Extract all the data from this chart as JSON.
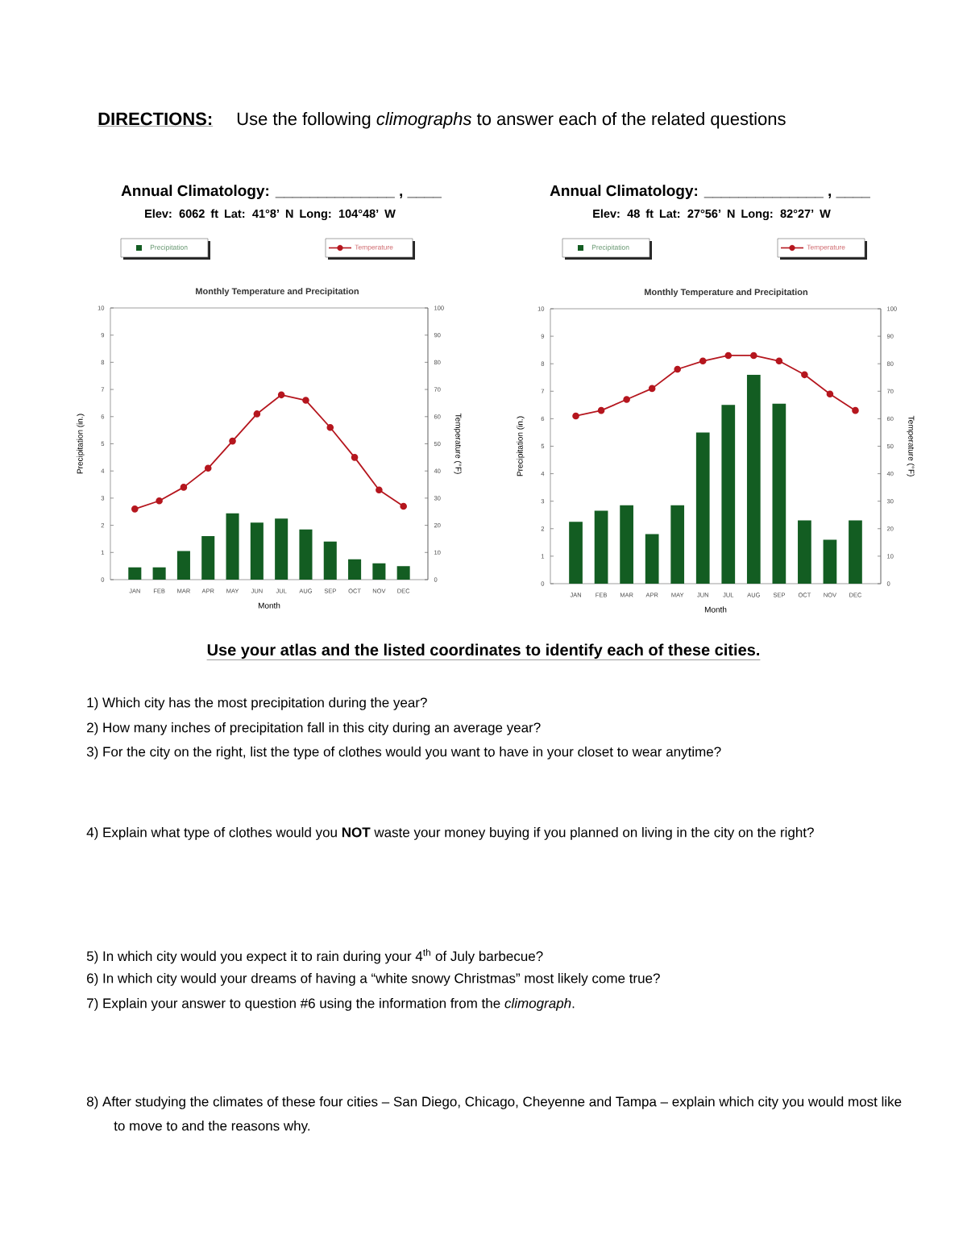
{
  "chart_data": [
    {
      "type": "other",
      "title": "DIRECTIONS:",
      "subtitle": "Use the following *climographs* to answer each of the related questions"
    },
    {
      "type": "bar",
      "title": "Annual Climatology: ______________ , ____",
      "subtitle": "Elev: 6062 ft Lat: 41°8’ N Long: 104°48’ W",
      "annotations": [
        "Monthly Temperature and Precipitation"
      ],
      "categories": [
        "JAN",
        "FEB",
        "MAR",
        "APR",
        "MAY",
        "JUN",
        "JUL",
        "AUG",
        "SEP",
        "OCT",
        "NOV",
        "DEC"
      ],
      "series": [
        {
          "name": "Precipitation",
          "color": "#135d22",
          "values": [
            0.45,
            0.45,
            1.05,
            1.6,
            2.45,
            2.1,
            2.25,
            1.85,
            1.4,
            0.75,
            0.6,
            0.5
          ]
        },
        {
          "name": "Temperature",
          "color": "#b5161e",
          "type": "line",
          "axis": "y2",
          "values": [
            26,
            29,
            34,
            41,
            51,
            61,
            68,
            66,
            56,
            45,
            33,
            27
          ]
        }
      ],
      "xlabel": "Month",
      "ylabel": "Precipitation (in.)",
      "y2label": "Temperature (°F)",
      "ylim": [
        0,
        10
      ],
      "yticks": [
        0,
        1,
        2,
        3,
        4,
        5,
        6,
        7,
        8,
        9,
        10
      ],
      "y2lim": [
        0,
        100
      ],
      "y2ticks": [
        0,
        10,
        20,
        30,
        40,
        50,
        60,
        70,
        80,
        90,
        100
      ],
      "legend": "top",
      "marker": "circle"
    },
    {
      "type": "bar",
      "title": "Annual Climatology: ______________ , ____",
      "subtitle": "Elev: 48 ft Lat: 27°56’ N Long: 82°27’ W",
      "annotations": [
        "Monthly Temperature and Precipitation"
      ],
      "categories": [
        "JAN",
        "FEB",
        "MAR",
        "APR",
        "MAY",
        "JUN",
        "JUL",
        "AUG",
        "SEP",
        "OCT",
        "NOV",
        "DEC"
      ],
      "series": [
        {
          "name": "Precipitation",
          "color": "#135d22",
          "values": [
            2.25,
            2.65,
            2.85,
            1.8,
            2.85,
            5.5,
            6.5,
            7.6,
            6.55,
            2.3,
            1.6,
            2.3
          ]
        },
        {
          "name": "Temperature",
          "color": "#b5161e",
          "type": "line",
          "axis": "y2",
          "values": [
            61,
            63,
            67,
            71,
            78,
            81,
            83,
            83,
            81,
            76,
            69,
            63
          ]
        }
      ],
      "xlabel": "Month",
      "ylabel": "Precipitation (in.)",
      "y2label": "Temperature (°F)",
      "ylim": [
        0,
        10
      ],
      "yticks": [
        0,
        1,
        2,
        3,
        4,
        5,
        6,
        7,
        8,
        9,
        10
      ],
      "y2lim": [
        0,
        100
      ],
      "y2ticks": [
        0,
        10,
        20,
        30,
        40,
        50,
        60,
        70,
        80,
        90,
        100
      ],
      "legend": "top",
      "marker": "circle"
    },
    {
      "type": "other",
      "title": "Use your atlas and the listed coordinates to identify each of these cities.",
      "annotations": [
        "1) Which city has the most precipitation during the year?",
        "2) How many inches of precipitation fall in this city during an average year?",
        "3) For the city on the right, list the type of clothes would you want to have in your closet to wear anytime?",
        "4) Explain what type of clothes would you **NOT** waste your money buying if you planned on living in the city on the right?",
        "5) In which city would you expect it to rain during your 4$^{th}$ of July barbecue?",
        "6) In which city would your dreams of having a “white snowy Christmas” most likely come true?",
        "7) Explain your answer to question #6 using the information from the *climograph*.",
        "8) After studying the climates of these four cities – San Diego, Chicago, Cheyenne and Tampa – explain which city you would most like to move to and the reasons why."
      ]
    }
  ]
}
